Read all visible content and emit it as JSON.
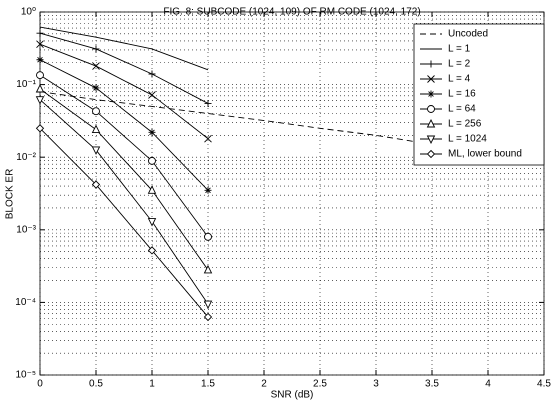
{
  "chart_data": {
    "type": "line",
    "title": "FIG. 8: SUBCODE (1024, 109) OF RM CODE (1024, 172)",
    "x_label": "SNR (dB)",
    "y_label": "BLOCK ER",
    "x": [
      0,
      0.5,
      1,
      1.5,
      2,
      2.5,
      3,
      3.5,
      4,
      4.5
    ],
    "xlim": [
      0,
      4.5
    ],
    "xticks": [
      0,
      0.5,
      1,
      1.5,
      2,
      2.5,
      3,
      3.5,
      4,
      4.5
    ],
    "ylim": [
      1e-05,
      1
    ],
    "log_y": true,
    "grid": true,
    "legend": "top-right",
    "color": "#000000",
    "yticks": [
      {
        "value": 1e-05,
        "label": "10⁻⁵"
      },
      {
        "value": 0.0001,
        "label": "10⁻⁴"
      },
      {
        "value": 0.001,
        "label": "10⁻³"
      },
      {
        "value": 0.01,
        "label": "10⁻²"
      },
      {
        "value": 0.1,
        "label": "10⁻¹"
      },
      {
        "value": 1,
        "label": "10⁰"
      }
    ],
    "series": [
      {
        "name": "Uncoded",
        "dash": true,
        "marker": "none",
        "values": [
          0.08,
          0.062,
          0.05,
          0.04,
          0.032,
          0.025,
          0.02,
          0.015,
          0.012,
          0.009
        ]
      },
      {
        "name": "L = 1",
        "marker": "none",
        "values": [
          0.62,
          0.45,
          0.31,
          0.16,
          null,
          null,
          null,
          null,
          null,
          null
        ]
      },
      {
        "name": "L = 2",
        "marker": "plus",
        "values": [
          0.51,
          0.31,
          0.14,
          0.055,
          null,
          null,
          null,
          null,
          null,
          null
        ]
      },
      {
        "name": "L = 4",
        "marker": "x",
        "values": [
          0.36,
          0.18,
          0.072,
          0.018,
          null,
          null,
          null,
          null,
          null,
          null
        ]
      },
      {
        "name": "L = 16",
        "marker": "star",
        "values": [
          0.22,
          0.09,
          0.022,
          0.0035,
          null,
          null,
          null,
          null,
          null,
          null
        ]
      },
      {
        "name": "L = 64",
        "marker": "circle",
        "values": [
          0.135,
          0.043,
          0.0089,
          0.0008,
          null,
          null,
          null,
          null,
          null,
          null
        ]
      },
      {
        "name": "L = 256",
        "marker": "triangle-up",
        "values": [
          0.087,
          0.024,
          0.0035,
          0.00028,
          null,
          null,
          null,
          null,
          null,
          null
        ]
      },
      {
        "name": "L = 1024",
        "marker": "triangle-down",
        "values": [
          0.062,
          0.0126,
          0.0013,
          9.5e-05,
          null,
          null,
          null,
          null,
          null,
          null
        ]
      },
      {
        "name": "ML, lower bound",
        "marker": "diamond",
        "values": [
          0.025,
          0.0042,
          0.00052,
          6.3e-05,
          null,
          null,
          null,
          null,
          null,
          null
        ]
      }
    ]
  }
}
